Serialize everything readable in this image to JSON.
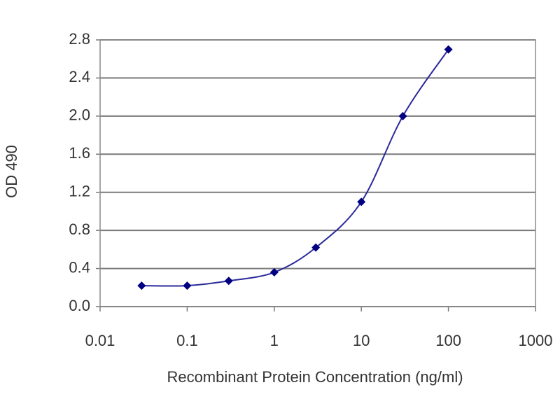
{
  "chart_data": {
    "type": "line",
    "x_label": "Recombinant Protein Concentration (ng/ml)",
    "y_label": "OD 490",
    "x": [
      0.03,
      0.1,
      0.3,
      1,
      3,
      10,
      30,
      100
    ],
    "values": [
      0.22,
      0.22,
      0.27,
      0.36,
      0.62,
      1.1,
      2.0,
      2.7
    ],
    "color": "#2a2a9a",
    "marker_color": "#000080",
    "x_scale": "log",
    "xlim": [
      0.01,
      1000
    ],
    "xticks": [
      0.01,
      0.1,
      1,
      10,
      100,
      1000
    ],
    "ylim": [
      0,
      2.8
    ],
    "yticks": [
      {
        "value": 0,
        "label": "0.0"
      },
      0.4,
      0.8,
      1.2,
      1.6,
      {
        "value": 2,
        "label": "2.0"
      },
      2.4,
      2.8
    ],
    "grid": true
  }
}
